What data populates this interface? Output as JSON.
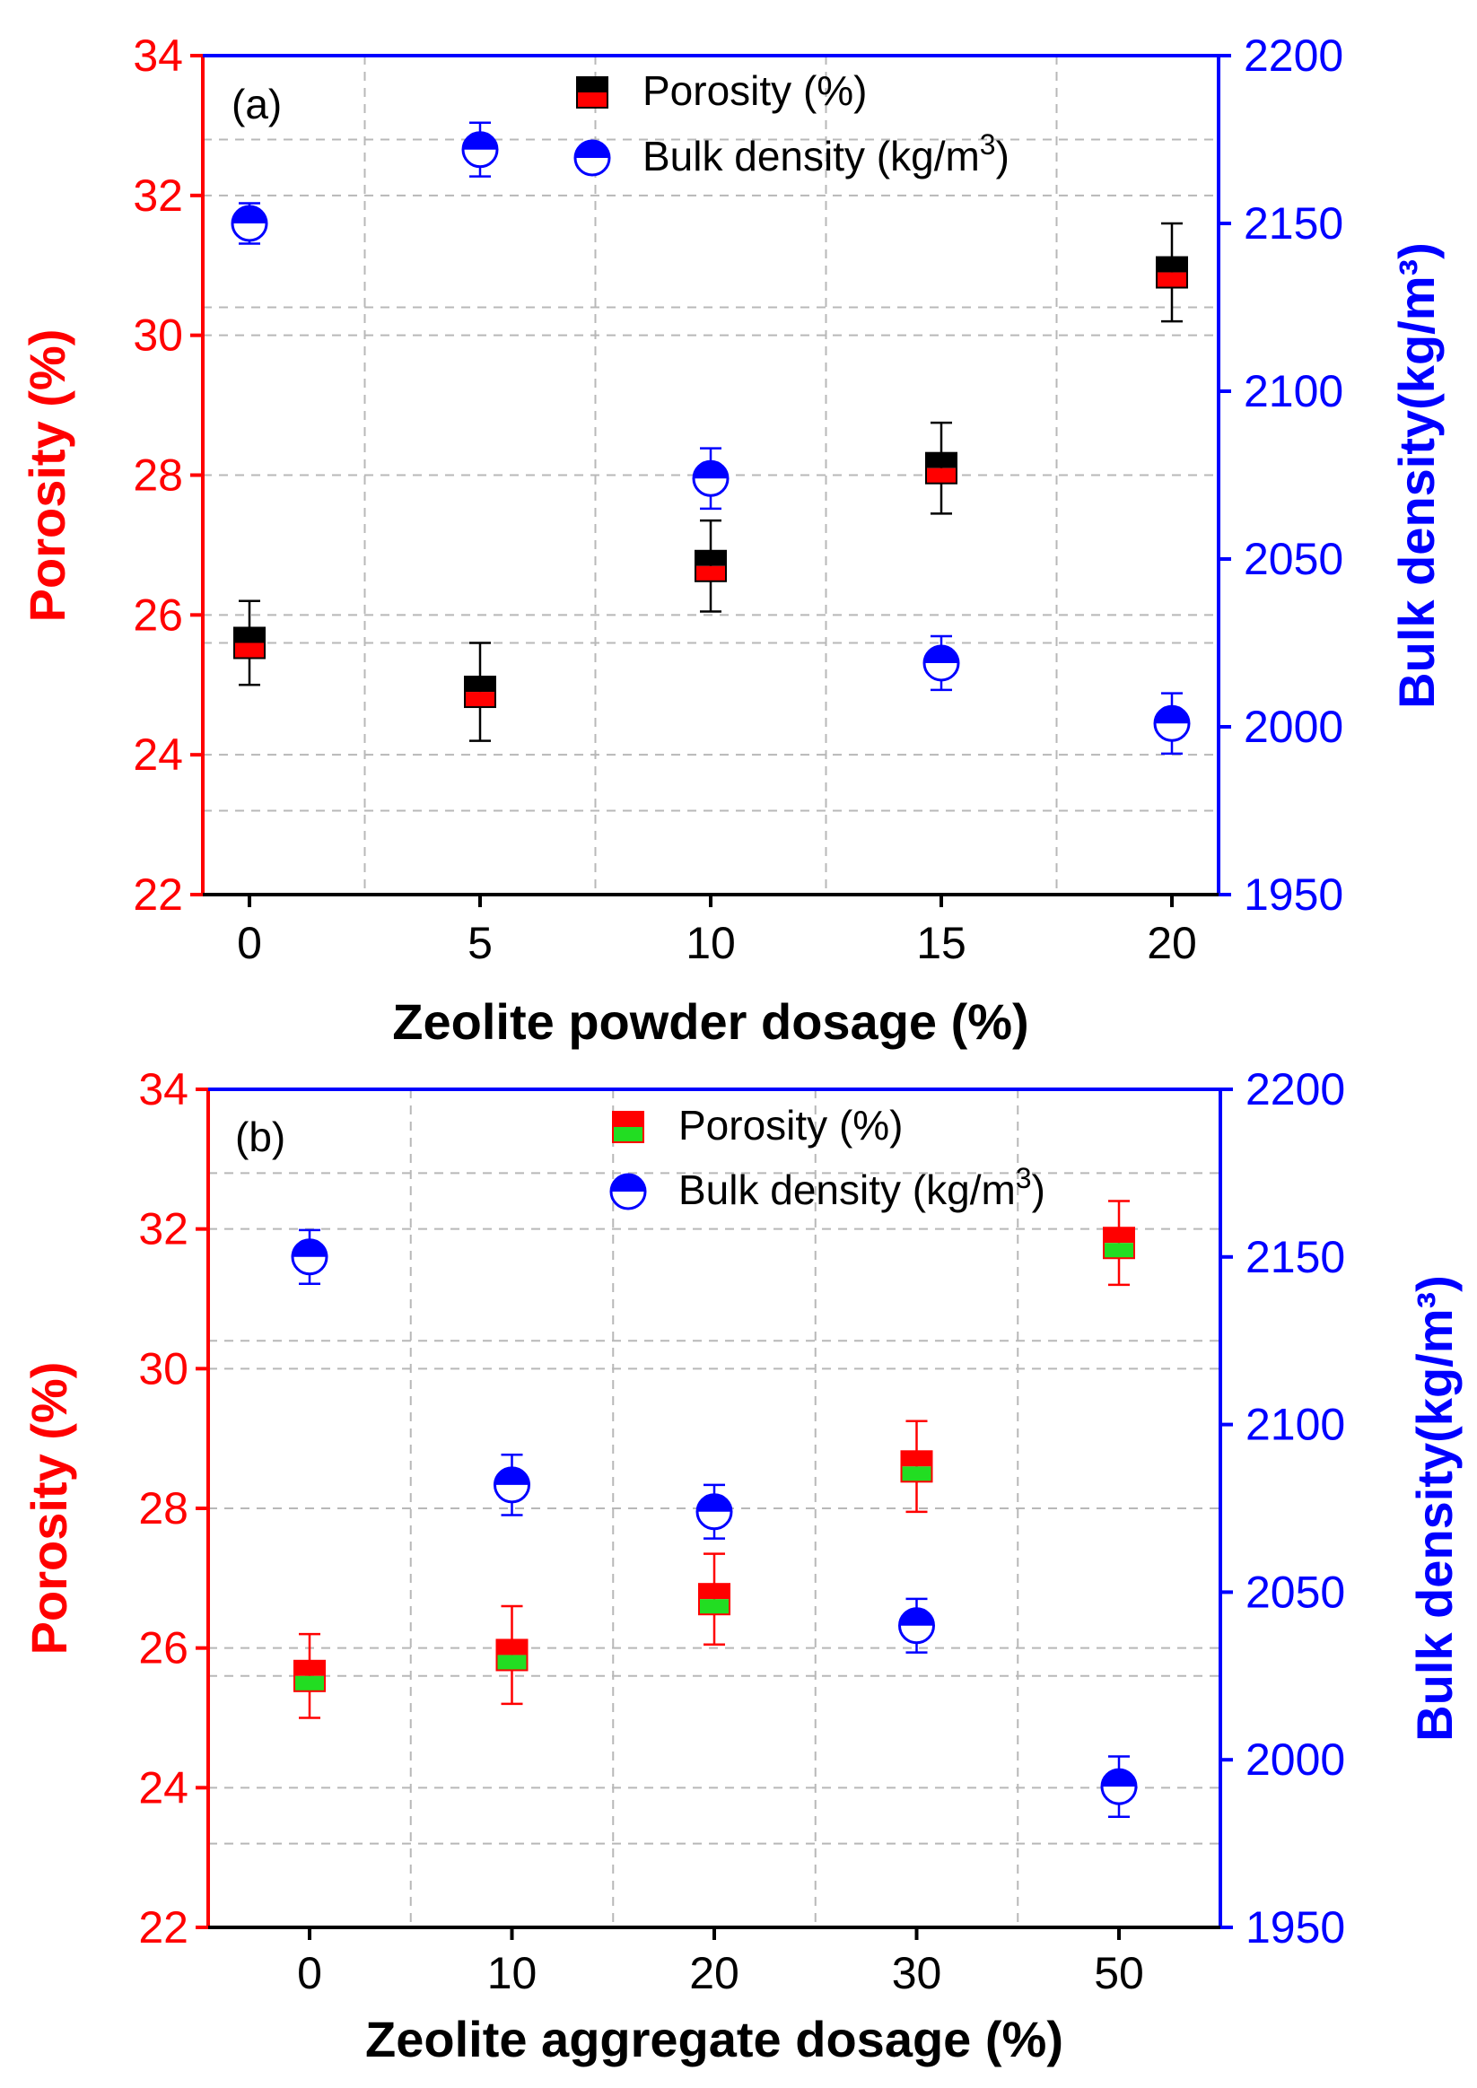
{
  "colors": {
    "left_axis": "#ff0000",
    "right_axis": "#0000ff",
    "grid": "#b8b8b8",
    "density_marker": "#0000ff"
  },
  "chart_data": [
    {
      "type": "scatter",
      "panel_label": "(a)",
      "xlabel": "Zeolite powder dosage (%)",
      "categories": [
        "0",
        "5",
        "10",
        "15",
        "20"
      ],
      "y_left": {
        "label": "Porosity (%)",
        "lim": [
          22,
          34
        ],
        "ticks": [
          "22",
          "24",
          "26",
          "28",
          "30",
          "32",
          "34"
        ]
      },
      "y_right": {
        "label": "Bulk density(kg/m³)",
        "lim": [
          1950,
          2200
        ],
        "ticks": [
          "1950",
          "2000",
          "2050",
          "2100",
          "2150",
          "2200"
        ]
      },
      "legend": {
        "position": "top-center",
        "porosity_label": "Porosity (%)",
        "density_label": "Bulk density (kg/m",
        "density_sup": "3",
        "density_close": ")"
      },
      "grid": true,
      "porosity_marker": {
        "top_color": "#000000",
        "bottom_color": "#ff0000",
        "error_color": "#000000"
      },
      "series": [
        {
          "name": "Porosity (%)",
          "axis": "left",
          "values": [
            25.6,
            24.9,
            26.7,
            28.1,
            30.9
          ],
          "errors": [
            0.6,
            0.7,
            0.65,
            0.65,
            0.7
          ]
        },
        {
          "name": "Bulk density (kg/m3)",
          "axis": "right",
          "values": [
            2150,
            2172,
            2074,
            2019,
            2001
          ],
          "errors": [
            6,
            8,
            9,
            8,
            9
          ]
        }
      ]
    },
    {
      "type": "scatter",
      "panel_label": "(b)",
      "xlabel": "Zeolite aggregate dosage (%)",
      "categories": [
        "0",
        "10",
        "20",
        "30",
        "50"
      ],
      "y_left": {
        "label": "Porosity (%)",
        "lim": [
          22,
          34
        ],
        "ticks": [
          "22",
          "24",
          "26",
          "28",
          "30",
          "32",
          "34"
        ]
      },
      "y_right": {
        "label": "Bulk density(kg/m³)",
        "lim": [
          1950,
          2200
        ],
        "ticks": [
          "1950",
          "2000",
          "2050",
          "2100",
          "2150",
          "2200"
        ]
      },
      "legend": {
        "position": "top-center",
        "porosity_label": "Porosity (%)",
        "density_label": "Bulk density (kg/m",
        "density_sup": "3",
        "density_close": ")"
      },
      "grid": true,
      "porosity_marker": {
        "top_color": "#ff0000",
        "bottom_color": "#22dd22",
        "error_color": "#ff0000"
      },
      "series": [
        {
          "name": "Porosity (%)",
          "axis": "left",
          "values": [
            25.6,
            25.9,
            26.7,
            28.6,
            31.8
          ],
          "errors": [
            0.6,
            0.7,
            0.65,
            0.65,
            0.6
          ]
        },
        {
          "name": "Bulk density (kg/m3)",
          "axis": "right",
          "values": [
            2150,
            2082,
            2074,
            2040,
            1992
          ],
          "errors": [
            8,
            9,
            8,
            8,
            9
          ]
        }
      ]
    }
  ]
}
